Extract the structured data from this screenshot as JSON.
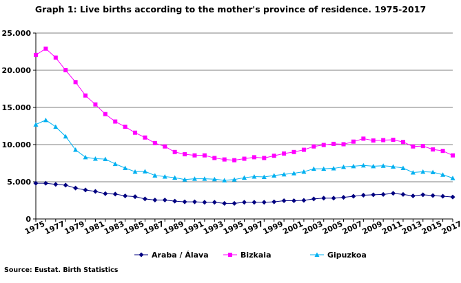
{
  "chart_data": {
    "type": "line",
    "title": "Graph 1: Live births according to the mother's province of residence. 1975-2017",
    "source": "Source: Eustat. Birth Statistics",
    "x": [
      1975,
      1976,
      1977,
      1978,
      1979,
      1980,
      1981,
      1982,
      1983,
      1984,
      1985,
      1986,
      1987,
      1988,
      1989,
      1990,
      1991,
      1992,
      1993,
      1994,
      1995,
      1996,
      1997,
      1998,
      1999,
      2000,
      2001,
      2002,
      2003,
      2004,
      2005,
      2006,
      2007,
      2008,
      2009,
      2010,
      2011,
      2012,
      2013,
      2014,
      2015,
      2016,
      2017
    ],
    "x_tick_labels": [
      "1975",
      "1977",
      "1979",
      "1981",
      "1983",
      "1985",
      "1987",
      "1989",
      "1991",
      "1993",
      "1995",
      "1997",
      "1999",
      "2001",
      "2003",
      "2005",
      "2007",
      "2009",
      "2011",
      "2013",
      "2015",
      "2017"
    ],
    "y_tick_labels": [
      "0",
      "5.000",
      "10.000",
      "15.000",
      "20.000",
      "25.000"
    ],
    "ylim": [
      0,
      25000
    ],
    "grid": "horizontal",
    "legend_position": "bottom",
    "series": [
      {
        "name": "Araba / Álava",
        "color": "#000080",
        "marker": "diamond",
        "values": [
          4800,
          4800,
          4650,
          4550,
          4150,
          3900,
          3700,
          3400,
          3350,
          3100,
          3000,
          2700,
          2550,
          2550,
          2400,
          2300,
          2300,
          2250,
          2250,
          2100,
          2100,
          2250,
          2250,
          2250,
          2300,
          2450,
          2450,
          2500,
          2700,
          2800,
          2800,
          2900,
          3050,
          3200,
          3250,
          3300,
          3450,
          3300,
          3100,
          3250,
          3150,
          3050,
          2950
        ]
      },
      {
        "name": "Bizkaia",
        "color": "#FF00FF",
        "marker": "square",
        "values": [
          22050,
          22900,
          21700,
          20000,
          18400,
          16600,
          15400,
          14100,
          13100,
          12400,
          11600,
          10950,
          10200,
          9750,
          9000,
          8700,
          8550,
          8550,
          8200,
          8000,
          7900,
          8100,
          8300,
          8200,
          8500,
          8800,
          9000,
          9300,
          9750,
          9950,
          10100,
          10050,
          10400,
          10800,
          10550,
          10600,
          10650,
          10350,
          9750,
          9800,
          9350,
          9150,
          8550
        ]
      },
      {
        "name": "Gipuzkoa",
        "color": "#00B0F0",
        "marker": "triangle",
        "values": [
          12700,
          13300,
          12400,
          11100,
          9300,
          8300,
          8100,
          8050,
          7400,
          6850,
          6350,
          6400,
          5850,
          5700,
          5550,
          5300,
          5400,
          5400,
          5350,
          5200,
          5300,
          5550,
          5700,
          5650,
          5850,
          6000,
          6150,
          6350,
          6750,
          6750,
          6800,
          7000,
          7100,
          7200,
          7100,
          7150,
          7050,
          6850,
          6250,
          6350,
          6300,
          5950,
          5500
        ]
      }
    ]
  }
}
